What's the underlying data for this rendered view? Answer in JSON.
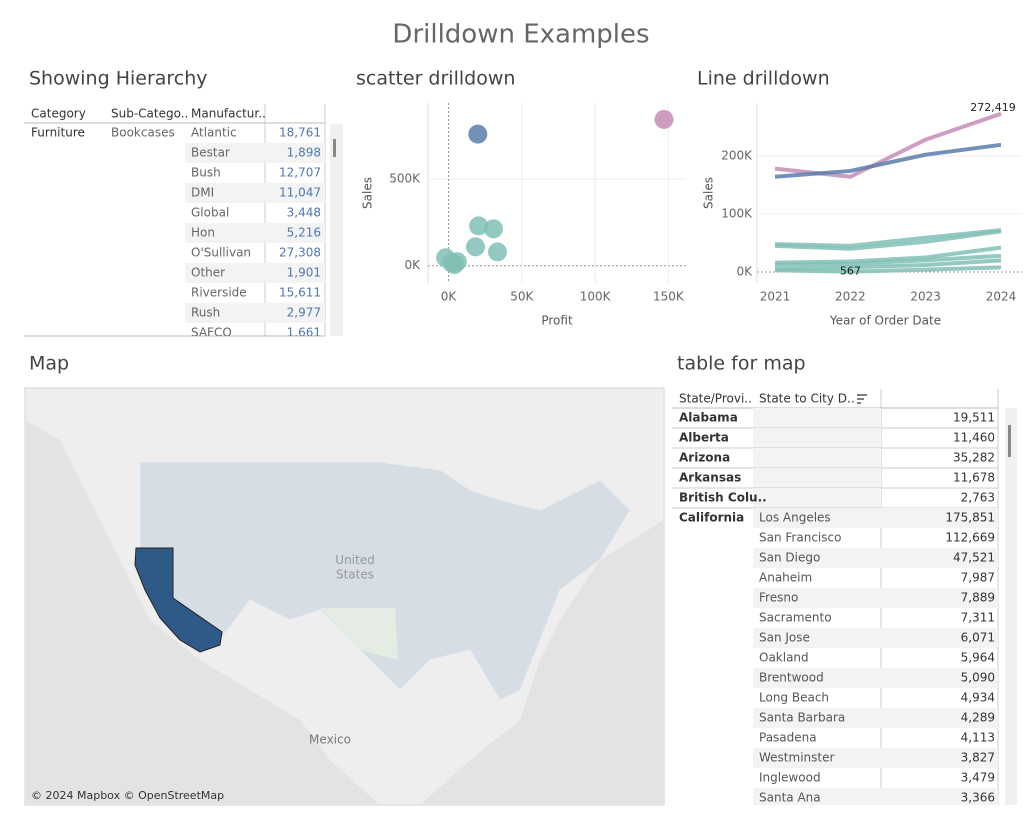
{
  "title": "Drilldown Examples",
  "hierarchy": {
    "title": "Showing Hierarchy",
    "headers": [
      "Category",
      "Sub-Catego..",
      "Manufactur.."
    ],
    "category": "Furniture",
    "subcategory": "Bookcases",
    "rows": [
      {
        "manufacturer": "Atlantic",
        "value": "18,761"
      },
      {
        "manufacturer": "Bestar",
        "value": "1,898"
      },
      {
        "manufacturer": "Bush",
        "value": "12,707"
      },
      {
        "manufacturer": "DMI",
        "value": "11,047"
      },
      {
        "manufacturer": "Global",
        "value": "3,448"
      },
      {
        "manufacturer": "Hon",
        "value": "5,216"
      },
      {
        "manufacturer": "O'Sullivan",
        "value": "27,308"
      },
      {
        "manufacturer": "Other",
        "value": "1,901"
      },
      {
        "manufacturer": "Riverside",
        "value": "15,611"
      },
      {
        "manufacturer": "Rush",
        "value": "2,977"
      },
      {
        "manufacturer": "SAFCO",
        "value": "1,661"
      }
    ]
  },
  "chart_data": [
    {
      "type": "scatter",
      "title": "scatter drilldown",
      "x_label": "Profit",
      "y_label": "Sales",
      "xlim": [
        -14000,
        162000
      ],
      "ylim": [
        -100000,
        940000
      ],
      "xticks": [
        {
          "value": 0,
          "label": "0K"
        },
        {
          "value": 50000,
          "label": "50K"
        },
        {
          "value": 100000,
          "label": "100K"
        },
        {
          "value": 150000,
          "label": "150K"
        }
      ],
      "yticks": [
        {
          "value": 0,
          "label": "0K"
        },
        {
          "value": 500000,
          "label": "500K"
        }
      ],
      "grid": true,
      "series": [
        {
          "color": "#5b7dab",
          "x": [
            20000
          ],
          "values": [
            760000
          ]
        },
        {
          "color": "#c48db5",
          "x": [
            147000
          ],
          "values": [
            845000
          ]
        },
        {
          "color": "#80c0b5",
          "x": [
            20500,
            30700,
            18400,
            33400,
            -2000,
            2000,
            6000,
            4000
          ],
          "values": [
            230000,
            213000,
            109000,
            80000,
            46000,
            17000,
            23000,
            6000
          ]
        }
      ]
    },
    {
      "type": "line",
      "title": "Line drilldown",
      "x_label": "Year of Order Date",
      "y_label": "Sales",
      "categories": [
        "2021",
        "2022",
        "2023",
        "2024"
      ],
      "ylim": [
        -19000,
        291000
      ],
      "yticks": [
        {
          "value": 0,
          "label": "0K"
        },
        {
          "value": 100000,
          "label": "100K"
        },
        {
          "value": 200000,
          "label": "200K"
        }
      ],
      "grid": true,
      "series": [
        {
          "color": "#c48db5",
          "values": [
            178000,
            164000,
            228000,
            272419
          ],
          "value_labels": [
            null,
            null,
            null,
            "272,419"
          ]
        },
        {
          "color": "#5b7dab",
          "values": [
            164000,
            174000,
            202000,
            219000
          ]
        },
        {
          "color": "#80c0b5",
          "values": [
            48000,
            45000,
            59000,
            72000
          ]
        },
        {
          "color": "#80c0b5",
          "values": [
            45000,
            40000,
            52000,
            70000
          ]
        },
        {
          "color": "#80c0b5",
          "values": [
            16000,
            18000,
            25000,
            42000
          ]
        },
        {
          "color": "#80c0b5",
          "values": [
            12000,
            14000,
            20000,
            28000
          ]
        },
        {
          "color": "#80c0b5",
          "values": [
            5000,
            8000,
            12000,
            20000
          ]
        },
        {
          "color": "#80c0b5",
          "values": [
            3000,
            567,
            4000,
            8000
          ],
          "value_labels": [
            null,
            "567",
            null,
            null
          ]
        }
      ]
    }
  ],
  "map": {
    "title": "Map",
    "labels": [
      "United\nStates",
      "Mexico"
    ],
    "attribution": "© 2024 Mapbox © OpenStreetMap"
  },
  "map_table": {
    "title": "table for map",
    "headers": [
      "State/Provi..",
      "State to City D.."
    ],
    "states": [
      {
        "state": "Alabama",
        "value": "19,511"
      },
      {
        "state": "Alberta",
        "value": "11,460"
      },
      {
        "state": "Arizona",
        "value": "35,282"
      },
      {
        "state": "Arkansas",
        "value": "11,678"
      },
      {
        "state": "British Colu..",
        "value": "2,763"
      }
    ],
    "expanded": {
      "state": "California",
      "cities": [
        {
          "city": "Los Angeles",
          "value": "175,851"
        },
        {
          "city": "San Francisco",
          "value": "112,669"
        },
        {
          "city": "San Diego",
          "value": "47,521"
        },
        {
          "city": "Anaheim",
          "value": "7,987"
        },
        {
          "city": "Fresno",
          "value": "7,889"
        },
        {
          "city": "Sacramento",
          "value": "7,311"
        },
        {
          "city": "San Jose",
          "value": "6,071"
        },
        {
          "city": "Oakland",
          "value": "5,964"
        },
        {
          "city": "Brentwood",
          "value": "5,090"
        },
        {
          "city": "Long Beach",
          "value": "4,934"
        },
        {
          "city": "Santa Barbara",
          "value": "4,289"
        },
        {
          "city": "Pasadena",
          "value": "4,113"
        },
        {
          "city": "Westminster",
          "value": "3,827"
        },
        {
          "city": "Inglewood",
          "value": "3,479"
        },
        {
          "city": "Santa Ana",
          "value": "3,366"
        }
      ]
    }
  }
}
